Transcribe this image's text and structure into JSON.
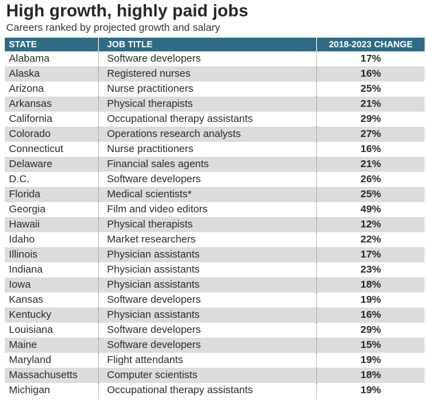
{
  "title": "High growth, highly paid jobs",
  "subtitle": "Careers ranked by projected growth and salary",
  "columns": {
    "state": "STATE",
    "job": "JOB TITLE",
    "change": "2018-2023 CHANGE"
  },
  "rows": [
    {
      "state": "Alabama",
      "job": "Software developers",
      "change": "17%"
    },
    {
      "state": "Alaska",
      "job": "Registered nurses",
      "change": "16%"
    },
    {
      "state": "Arizona",
      "job": "Nurse practitioners",
      "change": "25%"
    },
    {
      "state": "Arkansas",
      "job": "Physical therapists",
      "change": "21%"
    },
    {
      "state": "California",
      "job": "Occupational therapy assistants",
      "change": "29%"
    },
    {
      "state": "Colorado",
      "job": "Operations research analysts",
      "change": "27%"
    },
    {
      "state": "Connecticut",
      "job": "Nurse practitioners",
      "change": "16%"
    },
    {
      "state": "Delaware",
      "job": "Financial sales agents",
      "change": "21%"
    },
    {
      "state": "D.C.",
      "job": "Software developers",
      "change": "26%"
    },
    {
      "state": "Florida",
      "job": "Medical scientists*",
      "change": "25%"
    },
    {
      "state": "Georgia",
      "job": "Film and video editors",
      "change": "49%"
    },
    {
      "state": "Hawaii",
      "job": "Physical therapists",
      "change": "12%"
    },
    {
      "state": "Idaho",
      "job": "Market researchers",
      "change": "22%"
    },
    {
      "state": "Illinois",
      "job": "Physician assistants",
      "change": "17%"
    },
    {
      "state": "Indiana",
      "job": "Physician assistants",
      "change": "23%"
    },
    {
      "state": "Iowa",
      "job": "Physician assistants",
      "change": "18%"
    },
    {
      "state": "Kansas",
      "job": "Software developers",
      "change": "19%"
    },
    {
      "state": "Kentucky",
      "job": "Physician assistants",
      "change": "16%"
    },
    {
      "state": "Louisiana",
      "job": "Software developers",
      "change": "29%"
    },
    {
      "state": "Maine",
      "job": "Software developers",
      "change": "15%"
    },
    {
      "state": "Maryland",
      "job": "Flight attendants",
      "change": "19%"
    },
    {
      "state": "Massachusetts",
      "job": "Computer scientists",
      "change": "18%"
    },
    {
      "state": "Michigan",
      "job": "Occupational therapy assistants",
      "change": "19%"
    }
  ],
  "colors": {
    "header_bg": "#2f6b85",
    "header_text": "#ffffff",
    "row_shade": "#dcdcdc",
    "title_text": "#262626"
  }
}
